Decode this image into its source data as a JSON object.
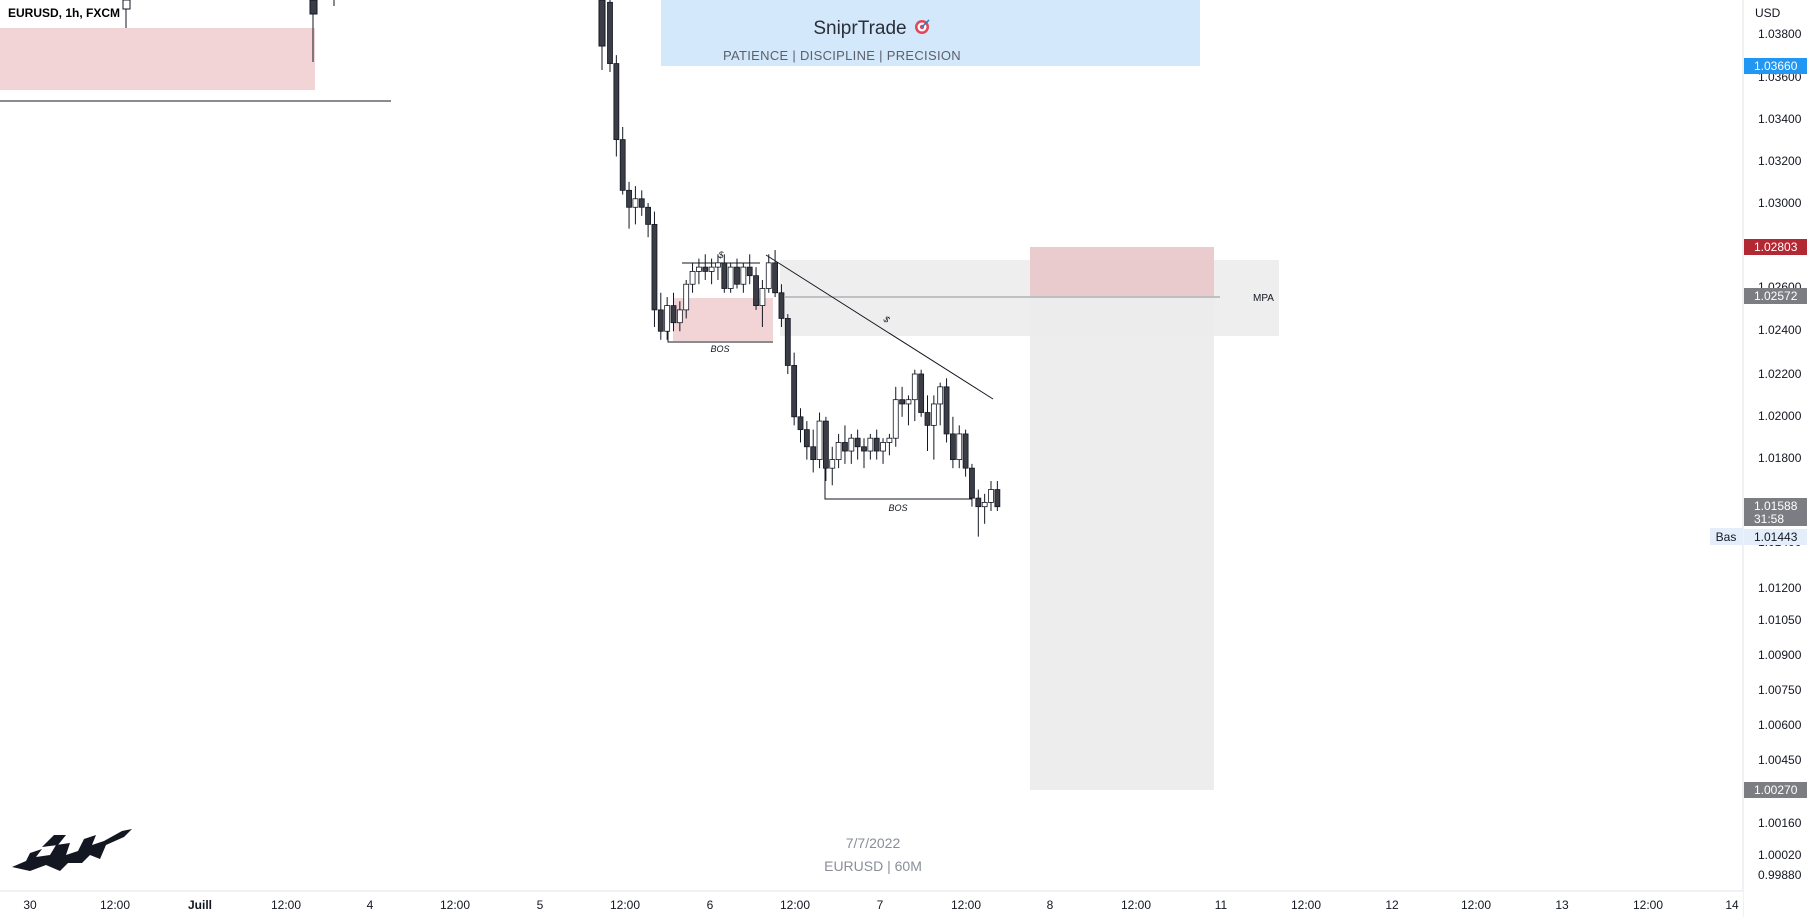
{
  "symbol_info": "EURUSD, 1h, FXCM",
  "banner": {
    "title": "SniprTrade",
    "subtitle": "PATIENCE | DISCIPLINE | PRECISION"
  },
  "watermark": {
    "date": "7/7/2022",
    "label": "EURUSD | 60M"
  },
  "annotations": {
    "bos_left": "BOS",
    "bos_right": "BOS",
    "liquidity_top": "$",
    "trendline_label": "$",
    "mpa": "MPA",
    "bas": "Bas"
  },
  "colors": {
    "bull": "#ffffff",
    "bear": "#3a3d45",
    "wick": "#131722",
    "red_zone": "#f2d3d6",
    "grey_zone": "#ebebeb",
    "banner_bg": "#d4e8fb",
    "tag_blue": "#2196f3",
    "tag_red": "#b22833",
    "tag_grey": "#7b7d82"
  },
  "chart_data": {
    "type": "candlestick",
    "currency": "USD",
    "y_ticks": [
      "1.03800",
      "1.03600",
      "1.03400",
      "1.03200",
      "1.03000",
      "1.02600",
      "1.02400",
      "1.02200",
      "1.02000",
      "1.01800",
      "1.01400",
      "1.01200",
      "1.01050",
      "1.00900",
      "1.00750",
      "1.00600",
      "1.00450",
      "1.00160",
      "1.00020",
      "0.99880"
    ],
    "x_ticks": [
      "30",
      "12:00",
      "Juill",
      "12:00",
      "4",
      "12:00",
      "5",
      "12:00",
      "6",
      "12:00",
      "7",
      "12:00",
      "8",
      "12:00",
      "11",
      "12:00",
      "12",
      "12:00",
      "13",
      "12:00",
      "14"
    ],
    "price_tags": [
      {
        "value": "1.03660",
        "color": "#2196f3"
      },
      {
        "value": "1.02803",
        "color": "#b22833"
      },
      {
        "value": "1.02572",
        "color": "#7b7d82"
      },
      {
        "value": "1.01588",
        "sub": "31:58",
        "color": "#7b7d82"
      },
      {
        "value": "1.01443",
        "color": "#e3eefa",
        "text_color": "#131722"
      },
      {
        "value": "1.00270",
        "color": "#7b7d82"
      }
    ],
    "candles": [
      [
        1.0395,
        1.0398,
        1.0362,
        1.0366
      ],
      [
        1.0366,
        1.037,
        1.0322,
        1.033
      ],
      [
        1.033,
        1.0336,
        1.0304,
        1.0306
      ],
      [
        1.0306,
        1.031,
        1.0288,
        1.0298
      ],
      [
        1.0298,
        1.0308,
        1.029,
        1.0302
      ],
      [
        1.0302,
        1.0306,
        1.0294,
        1.0298
      ],
      [
        1.0298,
        1.03,
        1.0284,
        1.029
      ],
      [
        1.029,
        1.0296,
        1.0242,
        1.025
      ],
      [
        1.025,
        1.0258,
        1.0236,
        1.024
      ],
      [
        1.024,
        1.0256,
        1.0236,
        1.0252
      ],
      [
        1.0252,
        1.0258,
        1.024,
        1.0244
      ],
      [
        1.0244,
        1.0254,
        1.024,
        1.025
      ],
      [
        1.025,
        1.0264,
        1.0246,
        1.0262
      ],
      [
        1.0262,
        1.0272,
        1.0258,
        1.0268
      ],
      [
        1.0268,
        1.0274,
        1.0262,
        1.027
      ],
      [
        1.027,
        1.0276,
        1.0264,
        1.0268
      ],
      [
        1.0268,
        1.0274,
        1.0262,
        1.027
      ],
      [
        1.027,
        1.0276,
        1.0264,
        1.0272
      ],
      [
        1.0272,
        1.0276,
        1.0258,
        1.026
      ],
      [
        1.026,
        1.0272,
        1.0258,
        1.027
      ],
      [
        1.027,
        1.0274,
        1.026,
        1.0262
      ],
      [
        1.0262,
        1.0272,
        1.0258,
        1.027
      ],
      [
        1.027,
        1.0276,
        1.0262,
        1.0266
      ],
      [
        1.0266,
        1.027,
        1.025,
        1.0252
      ],
      [
        1.0252,
        1.0264,
        1.0242,
        1.026
      ],
      [
        1.026,
        1.0276,
        1.0258,
        1.0272
      ],
      [
        1.0272,
        1.0278,
        1.0256,
        1.0258
      ],
      [
        1.0258,
        1.0262,
        1.0242,
        1.0246
      ],
      [
        1.0246,
        1.0248,
        1.022,
        1.0224
      ],
      [
        1.0224,
        1.023,
        1.0196,
        1.02
      ],
      [
        1.02,
        1.0204,
        1.0188,
        1.0194
      ],
      [
        1.0194,
        1.0198,
        1.018,
        1.0186
      ],
      [
        1.0186,
        1.0194,
        1.0174,
        1.018
      ],
      [
        1.018,
        1.0202,
        1.0176,
        1.0198
      ],
      [
        1.0198,
        1.02,
        1.017,
        1.0176
      ],
      [
        1.0176,
        1.0186,
        1.0168,
        1.018
      ],
      [
        1.018,
        1.0192,
        1.0176,
        1.0188
      ],
      [
        1.0188,
        1.0196,
        1.0178,
        1.0184
      ],
      [
        1.0184,
        1.0192,
        1.0178,
        1.019
      ],
      [
        1.019,
        1.0194,
        1.018,
        1.0186
      ],
      [
        1.0186,
        1.019,
        1.0176,
        1.0184
      ],
      [
        1.0184,
        1.0192,
        1.018,
        1.019
      ],
      [
        1.019,
        1.0194,
        1.018,
        1.0184
      ],
      [
        1.0184,
        1.019,
        1.0178,
        1.0188
      ],
      [
        1.0188,
        1.0192,
        1.0182,
        1.019
      ],
      [
        1.019,
        1.0214,
        1.0186,
        1.0208
      ],
      [
        1.0208,
        1.0214,
        1.02,
        1.0206
      ],
      [
        1.0206,
        1.021,
        1.0196,
        1.0208
      ],
      [
        1.0208,
        1.0222,
        1.0198,
        1.022
      ],
      [
        1.022,
        1.0222,
        1.02,
        1.0202
      ],
      [
        1.0202,
        1.021,
        1.0184,
        1.0196
      ],
      [
        1.0196,
        1.021,
        1.018,
        1.0206
      ],
      [
        1.0206,
        1.0216,
        1.0196,
        1.0214
      ],
      [
        1.0214,
        1.0218,
        1.0188,
        1.0192
      ],
      [
        1.0192,
        1.02,
        1.0176,
        1.018
      ],
      [
        1.018,
        1.0196,
        1.0176,
        1.0192
      ],
      [
        1.0192,
        1.0194,
        1.0172,
        1.0176
      ],
      [
        1.0176,
        1.0178,
        1.0158,
        1.0162
      ],
      [
        1.0162,
        1.0166,
        1.0144,
        1.0158
      ],
      [
        1.0158,
        1.0164,
        1.015,
        1.016
      ],
      [
        1.016,
        1.017,
        1.0156,
        1.0166
      ],
      [
        1.0166,
        1.017,
        1.0156,
        1.0158
      ]
    ]
  }
}
